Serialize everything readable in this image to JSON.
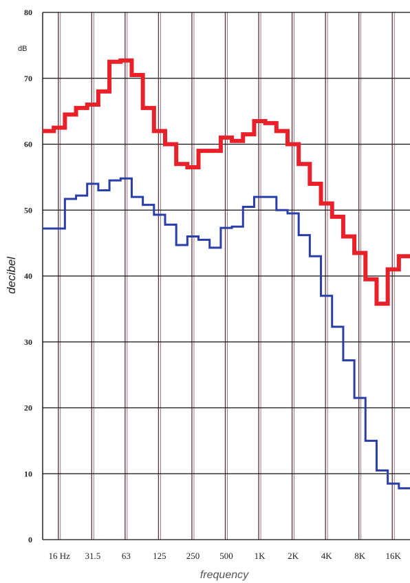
{
  "chart_data": {
    "type": "line",
    "step": true,
    "xlabel": "frequency",
    "ylabel": "decibel",
    "yunit": "dB",
    "ylim": [
      0,
      80
    ],
    "yticks": [
      0,
      10,
      20,
      30,
      40,
      50,
      60,
      70,
      80
    ],
    "grid": true,
    "x_tick_labels": [
      "16 Hz",
      "31.5",
      "63",
      "125",
      "250",
      "500",
      "1K",
      "2K",
      "4K",
      "8K",
      "16K"
    ],
    "bands": [
      "12.5",
      "16",
      "20",
      "25",
      "31.5",
      "40",
      "50",
      "63",
      "80",
      "100",
      "125",
      "160",
      "200",
      "250",
      "315",
      "400",
      "500",
      "630",
      "800",
      "1K",
      "1.25K",
      "1.6K",
      "2K",
      "2.5K",
      "3.15K",
      "4K",
      "5K",
      "6.3K",
      "8K",
      "10K",
      "12.5K",
      "16K",
      "20K"
    ],
    "series": [
      {
        "color": "#e8202a",
        "values": [
          62,
          62.5,
          64.5,
          65.5,
          66,
          68,
          72.5,
          72.7,
          70.5,
          65.5,
          62,
          60,
          57,
          56.5,
          59,
          59,
          61,
          60.5,
          61.5,
          63.5,
          63.2,
          62,
          60,
          57,
          54,
          51,
          49,
          46,
          43.5,
          39.5,
          35.8,
          41,
          43
        ]
      },
      {
        "color": "#2a3da8",
        "values": [
          47.2,
          47.2,
          51.7,
          52.2,
          54,
          53,
          54.5,
          54.8,
          52,
          50.8,
          49.3,
          47.8,
          44.7,
          46,
          45.5,
          44.3,
          47.3,
          47.5,
          50.5,
          52,
          52,
          50,
          49.5,
          46.2,
          43,
          37,
          32.3,
          27.2,
          21.5,
          15,
          10.5,
          8.5,
          7.8
        ]
      }
    ]
  }
}
